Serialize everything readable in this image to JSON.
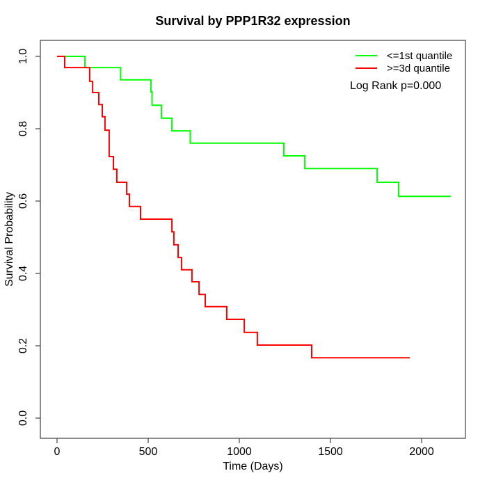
{
  "chart_data": {
    "type": "line",
    "subtype": "kaplan-meier-step",
    "title": "Survival by PPP1R32 expression",
    "xlabel": "Time (Days)",
    "ylabel": "Survival Probability",
    "xlim": [
      0,
      2240
    ],
    "ylim": [
      0,
      1
    ],
    "x_ticks": [
      0,
      500,
      1000,
      1500,
      2000
    ],
    "x_tick_labels": [
      "0",
      "500",
      "1000",
      "1500",
      "2000"
    ],
    "y_ticks": [
      0.0,
      0.2,
      0.4,
      0.6,
      0.8,
      1.0
    ],
    "y_tick_labels": [
      "0.0",
      "0.2",
      "0.4",
      "0.6",
      "0.8",
      "1.0"
    ],
    "grid": false,
    "legend_position": "top-right",
    "annotation": "Log Rank p=0.000",
    "series": [
      {
        "name": "<=1st quantile",
        "color": "#00ff00",
        "points": [
          [
            0,
            1.0
          ],
          [
            153,
            0.969
          ],
          [
            349,
            0.935
          ],
          [
            515,
            0.902
          ],
          [
            521,
            0.865
          ],
          [
            573,
            0.829
          ],
          [
            630,
            0.794
          ],
          [
            731,
            0.76
          ],
          [
            1244,
            0.725
          ],
          [
            1359,
            0.69
          ],
          [
            1756,
            0.652
          ],
          [
            1874,
            0.613
          ]
        ],
        "end_t": 2160
      },
      {
        "name": ">=3d quantile",
        "color": "#ff0000",
        "points": [
          [
            0,
            1.0
          ],
          [
            42,
            0.969
          ],
          [
            179,
            0.931
          ],
          [
            195,
            0.9
          ],
          [
            229,
            0.867
          ],
          [
            248,
            0.833
          ],
          [
            263,
            0.796
          ],
          [
            286,
            0.723
          ],
          [
            309,
            0.688
          ],
          [
            328,
            0.652
          ],
          [
            382,
            0.619
          ],
          [
            397,
            0.585
          ],
          [
            458,
            0.55
          ],
          [
            630,
            0.515
          ],
          [
            641,
            0.479
          ],
          [
            664,
            0.444
          ],
          [
            683,
            0.41
          ],
          [
            740,
            0.377
          ],
          [
            779,
            0.342
          ],
          [
            813,
            0.308
          ],
          [
            931,
            0.273
          ],
          [
            1027,
            0.237
          ],
          [
            1099,
            0.202
          ],
          [
            1397,
            0.167
          ]
        ],
        "end_t": 1935
      }
    ]
  }
}
